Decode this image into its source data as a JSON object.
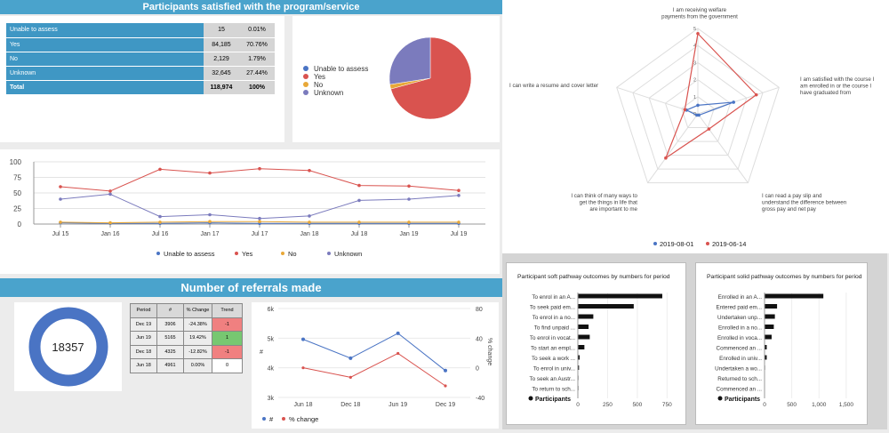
{
  "satisfaction": {
    "title": "Participants satisfied with the program/service",
    "rows": [
      {
        "label": "Unable to assess",
        "count": "15",
        "pct": "0.01%"
      },
      {
        "label": "Yes",
        "count": "84,185",
        "pct": "70.76%"
      },
      {
        "label": "No",
        "count": "2,129",
        "pct": "1.79%"
      },
      {
        "label": "Unknown",
        "count": "32,645",
        "pct": "27.44%"
      },
      {
        "label": "Total",
        "count": "118,974",
        "pct": "100%"
      }
    ],
    "pie_legend": [
      "Unable to assess",
      "Yes",
      "No",
      "Unknown"
    ]
  },
  "colors": {
    "blue": "#4a74c4",
    "red": "#d9534f",
    "orange": "#e8a838",
    "purple": "#7b7bbd",
    "title_bar": "#4aa3cc"
  },
  "trend_chart": {
    "yticks": [
      "100",
      "75",
      "50",
      "25",
      "0"
    ],
    "xticks": [
      "Jul 15",
      "Jan 16",
      "Jul 16",
      "Jan 17",
      "Jul 17",
      "Jan 18",
      "Jul 18",
      "Jan 19",
      "Jul 19"
    ],
    "legend": [
      "Unable to assess",
      "Yes",
      "No",
      "Unknown"
    ]
  },
  "referrals": {
    "title": "Number of referrals made",
    "total": "18357",
    "table": {
      "headers": [
        "Period",
        "#",
        "% Change",
        "Trend"
      ],
      "rows": [
        [
          "Dec 19",
          "3906",
          "-24.38%",
          "-1"
        ],
        [
          "Jun 19",
          "5165",
          "19.42%",
          "1"
        ],
        [
          "Dec 18",
          "4325",
          "-12.82%",
          "-1"
        ],
        [
          "Jun 18",
          "4961",
          "0.00%",
          "0"
        ]
      ]
    },
    "chart": {
      "left_ticks": [
        "6k",
        "5k",
        "4k",
        "3k"
      ],
      "right_ticks": [
        "80",
        "40",
        "0",
        "-40"
      ],
      "left_axis_label": "#",
      "right_axis_label": "% change",
      "xticks": [
        "Jun 18",
        "Dec 18",
        "Jun 19",
        "Dec 19"
      ],
      "legend": [
        "#",
        "% change"
      ]
    }
  },
  "radar": {
    "axes": [
      "I am receiving welfare payments from the government",
      "I am satisfied with the course I am enrolled in or the course I have graduated from",
      "I can read a pay slip and understand the difference between gross pay and net pay",
      "I can think of many ways to get the things in life that are important to me",
      "I can write a resume and cover letter"
    ],
    "ticks": [
      "5",
      "4",
      "3",
      "2",
      "1",
      "0"
    ],
    "legend": [
      "2019-08-01",
      "2019-06-14"
    ]
  },
  "soft_pathway": {
    "title": "Participant soft pathway outcomes by numbers for period",
    "labels": [
      "To enrol in an A...",
      "To seek paid em...",
      "To enrol in a no...",
      "To find unpaid ...",
      "To enrol in vocat...",
      "To start an empl...",
      "To seek a work ...",
      "To enrol in univ...",
      "To seek an Austr...",
      "To return to sch..."
    ],
    "xticks": [
      "0",
      "250",
      "500",
      "750"
    ],
    "legend": "Participants"
  },
  "solid_pathway": {
    "title": "Participant solid pathway outcomes by numbers for period",
    "labels": [
      "Enrolled in an A...",
      "Entered paid em...",
      "Undertaken unp...",
      "Enrolled in a no...",
      "Enrolled in voca...",
      "Commenced an ...",
      "Enrolled in univ...",
      "Undertaken a wo...",
      "Returned to sch...",
      "Commenced an ..."
    ],
    "xticks": [
      "0",
      "500",
      "1,000",
      "1,500"
    ],
    "legend": "Participants"
  },
  "chart_data": [
    {
      "type": "pie",
      "categories": [
        "Unable to assess",
        "Yes",
        "No",
        "Unknown"
      ],
      "values": [
        0.01,
        70.76,
        1.79,
        27.44
      ]
    },
    {
      "type": "line",
      "x": [
        "Jul 15",
        "Jan 16",
        "Jul 16",
        "Jan 17",
        "Jul 17",
        "Jan 18",
        "Jul 18",
        "Jan 19",
        "Jul 19"
      ],
      "ylim": [
        0,
        100
      ],
      "series": [
        {
          "name": "Unable to assess",
          "values": [
            2,
            1,
            1,
            2,
            1,
            1,
            1,
            1,
            1
          ]
        },
        {
          "name": "Yes",
          "values": [
            60,
            53,
            88,
            82,
            89,
            86,
            62,
            61,
            54
          ]
        },
        {
          "name": "No",
          "values": [
            3,
            2,
            3,
            4,
            4,
            3,
            3,
            3,
            3
          ]
        },
        {
          "name": "Unknown",
          "values": [
            40,
            48,
            12,
            15,
            9,
            13,
            38,
            40,
            46
          ]
        }
      ]
    },
    {
      "type": "line",
      "x": [
        "Jun 18",
        "Dec 18",
        "Jun 19",
        "Dec 19"
      ],
      "series": [
        {
          "name": "#",
          "values": [
            4961,
            4325,
            5165,
            3906
          ]
        },
        {
          "name": "% change",
          "values": [
            0.0,
            -12.82,
            19.42,
            -24.38
          ]
        }
      ]
    },
    {
      "type": "radar",
      "categories": [
        "I am receiving welfare payments from the government",
        "I am satisfied with the course I am enrolled in or the course I have graduated from",
        "I can read a pay slip and understand the difference between gross pay and net pay",
        "I can think of many ways to get the things in life that are important to me",
        "I can write a resume and cover letter"
      ],
      "ylim": [
        0,
        5
      ],
      "series": [
        {
          "name": "2019-08-01",
          "values": [
            0.5,
            2.2,
            0.1,
            0.1,
            0.7
          ]
        },
        {
          "name": "2019-06-14",
          "values": [
            4.7,
            3.6,
            1.1,
            3.2,
            0.8
          ]
        }
      ]
    },
    {
      "type": "bar",
      "categories": [
        "To enrol in an A...",
        "To seek paid em...",
        "To enrol in a no...",
        "To find unpaid ...",
        "To enrol in vocat...",
        "To start an empl...",
        "To seek a work ...",
        "To enrol in univ...",
        "To seek an Austr...",
        "To return to sch..."
      ],
      "values": [
        710,
        470,
        130,
        90,
        100,
        55,
        15,
        10,
        5,
        5
      ],
      "xlim": [
        0,
        800
      ]
    },
    {
      "type": "bar",
      "categories": [
        "Enrolled in an A...",
        "Entered paid em...",
        "Undertaken unp...",
        "Enrolled in a no...",
        "Enrolled in voca...",
        "Commenced an ...",
        "Enrolled in univ...",
        "Undertaken a wo...",
        "Returned to sch...",
        "Commenced an ..."
      ],
      "values": [
        1080,
        230,
        190,
        170,
        130,
        40,
        40,
        10,
        5,
        5
      ],
      "xlim": [
        0,
        1600
      ]
    }
  ]
}
